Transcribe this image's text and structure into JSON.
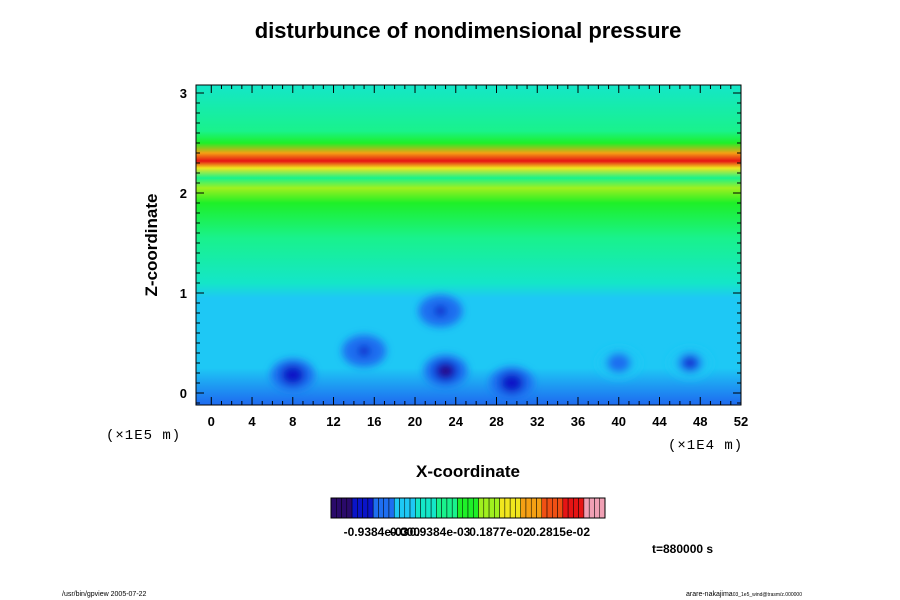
{
  "chart_data": {
    "type": "heatmap",
    "title": "disturbunce of nondimensional pressure",
    "xlabel": "X-coordinate",
    "ylabel": "Z-coordinate",
    "x_unit": "(×1E4 m)",
    "y_unit": "(×1E5 m)",
    "xlim": [
      -1.5,
      52
    ],
    "ylim": [
      -0.12,
      3.08
    ],
    "x_ticks": [
      "0",
      "4",
      "8",
      "12",
      "16",
      "20",
      "24",
      "28",
      "32",
      "36",
      "40",
      "44",
      "48",
      "52"
    ],
    "y_ticks": [
      "0",
      "1",
      "2",
      "3"
    ],
    "colorbar": {
      "colors": [
        "#2a0a6a",
        "#0a14c8",
        "#1e6ef0",
        "#1ec8f5",
        "#14e6c8",
        "#19f28c",
        "#1ef028",
        "#a0f01e",
        "#f0e61e",
        "#f5a014",
        "#f05014",
        "#e61414",
        "#f0a0b4"
      ],
      "labels": [
        "-0.9384e-03",
        "0.000",
        "0.9384e-03",
        "0.1877e-02",
        "0.2815e-02"
      ],
      "range": [
        -0.0014,
        0.0033
      ]
    },
    "description_levels": {
      "background": 0.00025,
      "z_levels": [
        {
          "z": -0.1,
          "v": -0.00035
        },
        {
          "z": 0.25,
          "v": -0.0003
        },
        {
          "z": 0.55,
          "v": -0.00025
        },
        {
          "z": 0.95,
          "v": -5e-05
        },
        {
          "z": 1.1,
          "v": 0.0001
        },
        {
          "z": 1.55,
          "v": 0.0005
        },
        {
          "z": 1.9,
          "v": 0.0011
        },
        {
          "z": 2.05,
          "v": 0.0014
        },
        {
          "z": 2.15,
          "v": 0.0006
        },
        {
          "z": 2.25,
          "v": 0.0018
        },
        {
          "z": 2.32,
          "v": 0.0029
        },
        {
          "z": 2.4,
          "v": 0.0021
        },
        {
          "z": 2.5,
          "v": 0.0011
        },
        {
          "z": 2.62,
          "v": 0.0007
        },
        {
          "z": 3.08,
          "v": 0.0004
        }
      ],
      "minima": [
        {
          "x": 8,
          "z": 0.18,
          "v": -0.0009
        },
        {
          "x": 15,
          "z": 0.42,
          "v": -0.0008
        },
        {
          "x": 23,
          "z": 0.22,
          "v": -0.0011
        },
        {
          "x": 29.5,
          "z": 0.1,
          "v": -0.0009
        },
        {
          "x": 22.5,
          "z": 0.82,
          "v": -0.0008
        },
        {
          "x": 40,
          "z": 0.3,
          "v": -0.0006
        },
        {
          "x": 47,
          "z": 0.3,
          "v": -0.0007
        }
      ]
    }
  },
  "time_label": "t=880000 s",
  "footer_left": "/usr/bin/gpview 2005-07-22",
  "footer_right_main": "arare-nakajima",
  "footer_right_sub": "03_1e5_wind@trasm/z.000000"
}
